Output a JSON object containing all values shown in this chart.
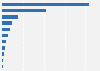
{
  "values": [
    830,
    420,
    150,
    95,
    75,
    58,
    42,
    30,
    20,
    14,
    7
  ],
  "bar_color": "#3070b3",
  "background_color": "#f2f2f2",
  "plot_bg_color": "#f2f2f2",
  "grid_color": "#ffffff",
  "xlim_max": 920,
  "bar_height": 0.55,
  "figwidth": 1.0,
  "figheight": 0.71,
  "dpi": 100
}
